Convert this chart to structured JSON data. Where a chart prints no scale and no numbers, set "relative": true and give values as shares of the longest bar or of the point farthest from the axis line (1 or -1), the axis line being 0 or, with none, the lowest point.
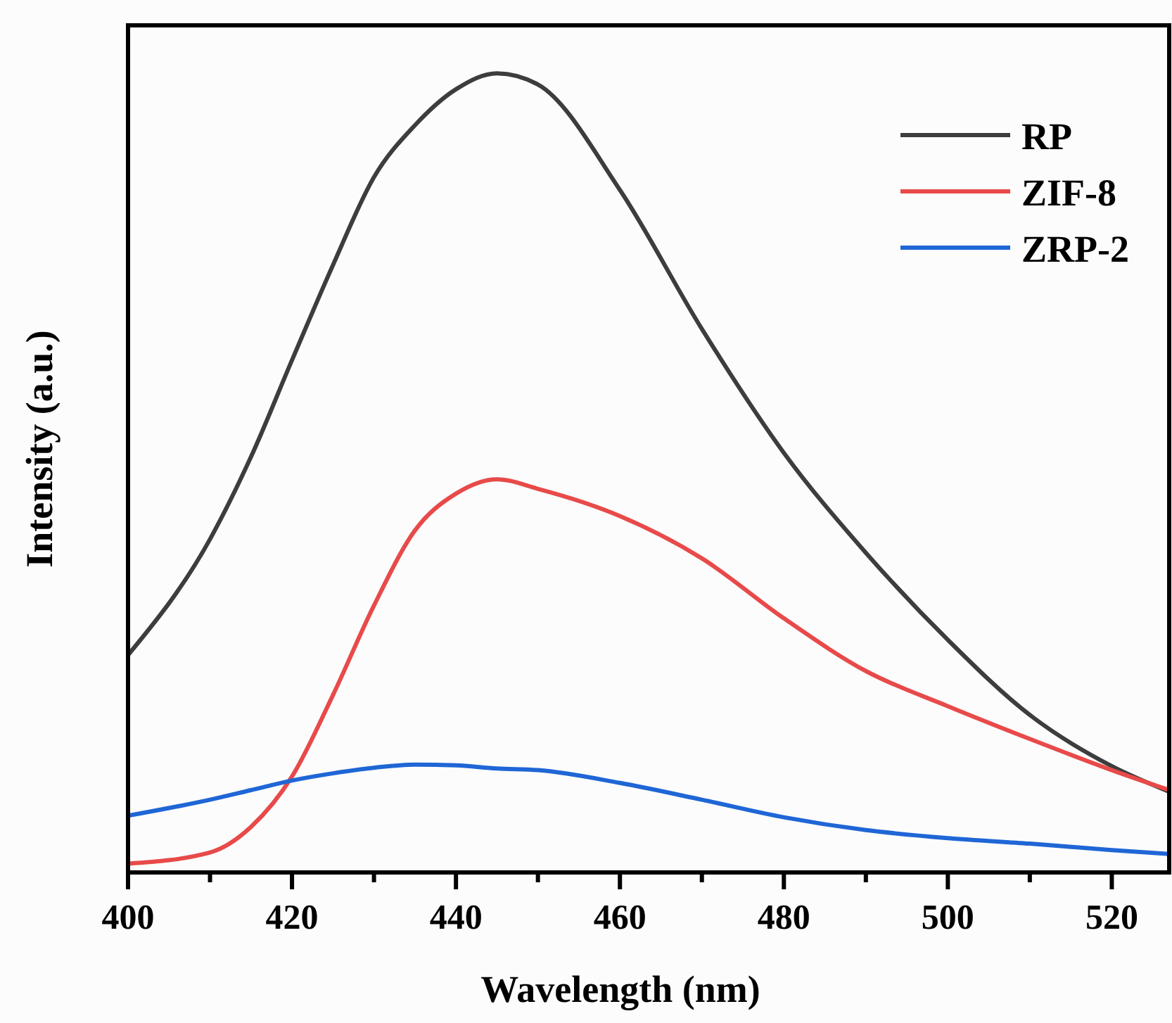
{
  "chart_data": {
    "type": "line",
    "xlabel": "Wavelength (nm)",
    "ylabel": "Intensity (a.u.)",
    "relative": true,
    "xlim": [
      400,
      527
    ],
    "xticks": [
      400,
      {
        "value": 410,
        "label": null
      },
      420,
      {
        "value": 430,
        "label": null
      },
      440,
      {
        "value": 450,
        "label": null
      },
      460,
      {
        "value": 470,
        "label": null
      },
      480,
      {
        "value": 490,
        "label": null
      },
      500,
      {
        "value": 510,
        "label": null
      },
      520
    ],
    "x": [
      400,
      410,
      415,
      420,
      425,
      430,
      435,
      440,
      445,
      450,
      460,
      470,
      480,
      490,
      500,
      510,
      520,
      527
    ],
    "legend": "top right",
    "grid": false,
    "line_style": "solid",
    "marker": "none",
    "series": [
      {
        "name": "RP",
        "color": "#3d3d3d",
        "values": [
          0.272,
          0.417,
          0.52,
          0.641,
          0.76,
          0.87,
          0.935,
          0.98,
          1.0,
          0.986,
          0.854,
          0.68,
          0.525,
          0.4,
          0.291,
          0.197,
          0.133,
          0.101
        ]
      },
      {
        "name": "ZIF-8",
        "color": "#e84a4a",
        "values": [
          0.011,
          0.025,
          0.057,
          0.12,
          0.222,
          0.334,
          0.428,
          0.474,
          0.492,
          0.48,
          0.446,
          0.393,
          0.318,
          0.252,
          0.208,
          0.167,
          0.128,
          0.103
        ]
      },
      {
        "name": "ZRP-2",
        "color": "#1f66d6",
        "values": [
          0.071,
          0.091,
          0.103,
          0.115,
          0.124,
          0.131,
          0.135,
          0.134,
          0.13,
          0.128,
          0.112,
          0.091,
          0.069,
          0.053,
          0.043,
          0.036,
          0.028,
          0.023
        ]
      }
    ]
  }
}
